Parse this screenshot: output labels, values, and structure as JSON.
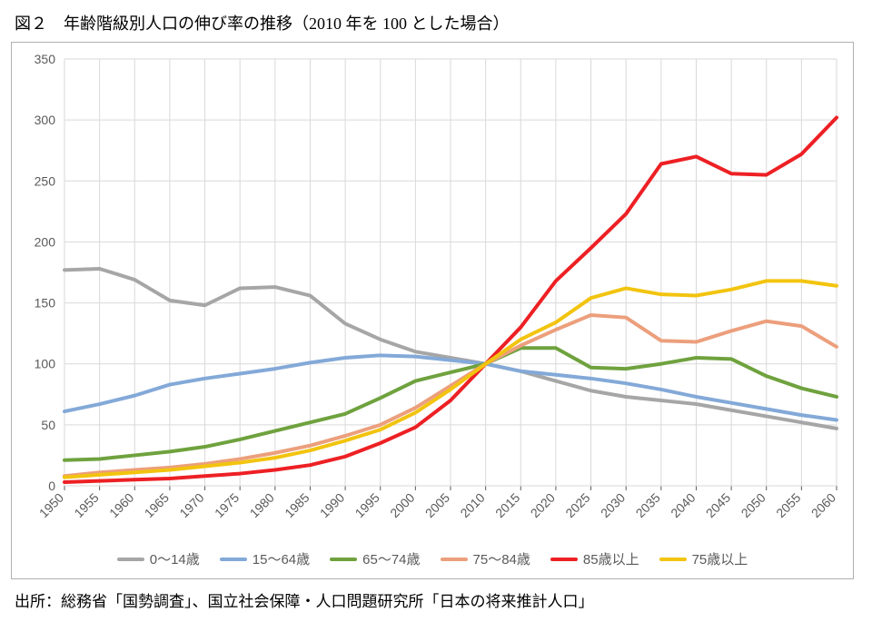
{
  "title": "図２　年齢階級別人口の伸び率の推移（2010 年を 100 とした場合）",
  "source": "出所：総務省「国勢調査」、国立社会保障・人口問題研究所「日本の将来推計人口」",
  "chart": {
    "type": "line",
    "background_color": "#ffffff",
    "plot_border_color": "#b0b0b0",
    "grid_color": "#d9d9d9",
    "axis_text_color": "#5a5a5a",
    "axis_fontsize": 14,
    "line_width": 4,
    "x": {
      "categories": [
        "1950",
        "1955",
        "1960",
        "1965",
        "1970",
        "1975",
        "1980",
        "1985",
        "1990",
        "1995",
        "2000",
        "2005",
        "2010",
        "2015",
        "2020",
        "2025",
        "2030",
        "2035",
        "2040",
        "2045",
        "2050",
        "2055",
        "2060"
      ],
      "tick_rotation": -45
    },
    "y": {
      "min": 0,
      "max": 350,
      "step": 50
    },
    "series": [
      {
        "name": "0～14歳",
        "color": "#a6a6a6",
        "values": [
          177,
          178,
          169,
          152,
          148,
          162,
          163,
          156,
          133,
          120,
          110,
          105,
          100,
          94,
          86,
          78,
          73,
          70,
          67,
          62,
          57,
          52,
          47
        ]
      },
      {
        "name": "15～64歳",
        "color": "#83a9d8",
        "values": [
          61,
          67,
          74,
          83,
          88,
          92,
          96,
          101,
          105,
          107,
          106,
          103,
          100,
          94,
          91,
          88,
          84,
          79,
          73,
          68,
          63,
          58,
          54
        ]
      },
      {
        "name": "65～74歳",
        "color": "#6fa23e",
        "values": [
          21,
          22,
          25,
          28,
          32,
          38,
          45,
          52,
          59,
          72,
          86,
          93,
          100,
          113,
          113,
          97,
          96,
          100,
          105,
          104,
          90,
          80,
          73
        ]
      },
      {
        "name": "75～84歳",
        "color": "#ec9f7c",
        "values": [
          8,
          11,
          13,
          15,
          18,
          22,
          27,
          33,
          41,
          50,
          64,
          82,
          100,
          115,
          128,
          140,
          138,
          119,
          118,
          127,
          135,
          131,
          114
        ]
      },
      {
        "name": "85歳以上",
        "color": "#ed2024",
        "values": [
          3,
          4,
          5,
          6,
          8,
          10,
          13,
          17,
          24,
          35,
          48,
          70,
          100,
          130,
          168,
          195,
          223,
          264,
          270,
          256,
          255,
          272,
          302
        ]
      },
      {
        "name": "75歳以上",
        "color": "#f2c40f",
        "values": [
          7,
          9,
          11,
          13,
          16,
          19,
          23,
          29,
          37,
          46,
          60,
          79,
          100,
          120,
          134,
          154,
          162,
          157,
          156,
          161,
          168,
          168,
          164
        ]
      }
    ]
  }
}
